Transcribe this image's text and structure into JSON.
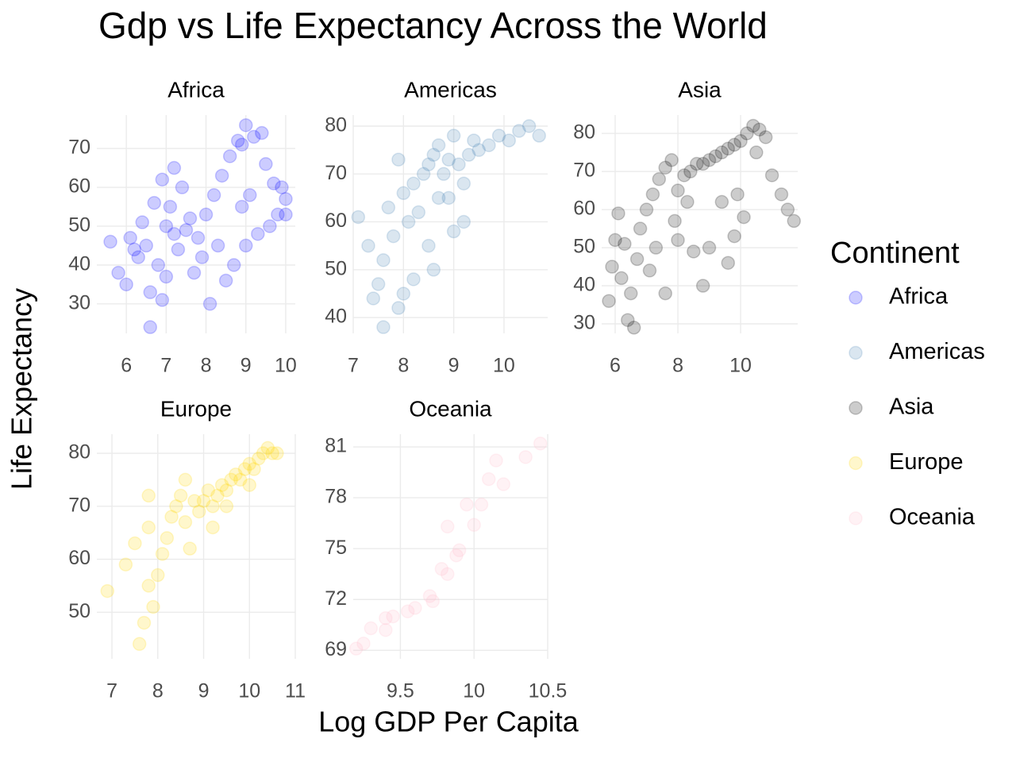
{
  "figure": {
    "title": "Gdp vs Life Expectancy Across the World",
    "x_label": "Log GDP Per Capita",
    "y_label": "Life Expectancy",
    "legend_title": "Continent",
    "legend_position": "right"
  },
  "chart_data": [
    {
      "type": "scatter",
      "title": "Africa",
      "xlim": [
        5.26,
        10.24
      ],
      "ylim": [
        22.4,
        78.6
      ],
      "xticks": [
        6,
        7,
        8,
        9,
        10
      ],
      "yticks": [
        30,
        40,
        50,
        60,
        70
      ],
      "grid": true,
      "series": [
        {
          "name": "Africa",
          "color": "#0000ff",
          "x": [
            6.5,
            6.8,
            7.0,
            7.2,
            6.3,
            5.6,
            5.8,
            6.0,
            6.2,
            6.6,
            6.9,
            7.1,
            7.4,
            7.6,
            7.3,
            7.8,
            8.0,
            8.2,
            8.4,
            8.6,
            8.8,
            9.0,
            8.9,
            9.2,
            9.4,
            9.5,
            9.7,
            9.9,
            10.0,
            9.8,
            9.6,
            9.3,
            9.0,
            8.7,
            8.5,
            8.1,
            7.9,
            7.7,
            7.5,
            6.7,
            6.4,
            6.1,
            6.9,
            7.2,
            7.0,
            6.6,
            8.3,
            8.9,
            9.1,
            10.0
          ],
          "values": [
            45,
            40,
            50,
            48,
            42,
            46,
            38,
            35,
            44,
            24,
            31,
            55,
            60,
            52,
            44,
            47,
            53,
            58,
            63,
            68,
            72,
            76,
            71,
            73,
            74,
            66,
            61,
            60,
            57,
            53,
            50,
            48,
            45,
            40,
            36,
            30,
            42,
            38,
            49,
            56,
            51,
            47,
            62,
            65,
            37,
            33,
            45,
            55,
            58,
            53
          ]
        }
      ]
    },
    {
      "type": "scatter",
      "title": "Americas",
      "xlim": [
        7.0,
        10.87
      ],
      "ylim": [
        36.7,
        82.3
      ],
      "xticks": [
        7,
        8,
        9,
        10
      ],
      "yticks": [
        40,
        50,
        60,
        70,
        80
      ],
      "grid": true,
      "series": [
        {
          "name": "Americas",
          "color": "#4682b4",
          "x": [
            7.1,
            7.3,
            7.5,
            7.6,
            7.8,
            7.7,
            8.0,
            8.1,
            8.2,
            8.4,
            8.5,
            8.6,
            8.7,
            8.8,
            8.9,
            9.0,
            9.1,
            9.2,
            9.3,
            9.4,
            9.5,
            9.7,
            9.9,
            10.1,
            10.3,
            10.5,
            10.7,
            8.3,
            8.0,
            7.9,
            7.6,
            8.5,
            8.6,
            8.2,
            8.9,
            9.2,
            9.0,
            7.4,
            8.7,
            7.9
          ],
          "values": [
            61,
            55,
            47,
            52,
            57,
            63,
            66,
            60,
            68,
            70,
            72,
            74,
            76,
            70,
            73,
            78,
            72,
            68,
            74,
            77,
            75,
            76,
            78,
            77,
            79,
            80,
            78,
            62,
            45,
            42,
            38,
            55,
            50,
            48,
            65,
            60,
            58,
            44,
            65,
            73
          ]
        }
      ]
    },
    {
      "type": "scatter",
      "title": "Asia",
      "xlim": [
        5.57,
        11.82
      ],
      "ylim": [
        27.5,
        84.8
      ],
      "xticks": [
        6,
        8,
        10
      ],
      "yticks": [
        30,
        40,
        50,
        60,
        70,
        80
      ],
      "grid": true,
      "series": [
        {
          "name": "Asia",
          "color": "#000000",
          "x": [
            5.8,
            5.9,
            6.0,
            6.1,
            6.2,
            6.4,
            6.5,
            6.6,
            6.7,
            6.8,
            7.0,
            7.2,
            7.4,
            7.6,
            7.8,
            8.0,
            8.2,
            8.4,
            8.6,
            8.8,
            9.0,
            9.2,
            9.4,
            9.6,
            9.8,
            10.0,
            10.2,
            10.4,
            10.6,
            10.8,
            11.0,
            11.3,
            11.5,
            11.7,
            10.1,
            9.8,
            9.6,
            9.0,
            8.5,
            8.0,
            7.6,
            7.1,
            7.9,
            8.3,
            8.8,
            9.4,
            9.9,
            10.5,
            6.3,
            7.3
          ],
          "values": [
            36,
            45,
            52,
            59,
            42,
            31,
            38,
            29,
            47,
            55,
            60,
            64,
            68,
            71,
            73,
            65,
            69,
            70,
            72,
            72,
            73,
            74,
            75,
            76,
            77,
            78,
            80,
            82,
            81,
            79,
            69,
            64,
            60,
            57,
            58,
            53,
            46,
            50,
            49,
            52,
            38,
            44,
            57,
            62,
            40,
            62,
            64,
            75,
            51,
            50
          ]
        }
      ]
    },
    {
      "type": "scatter",
      "title": "Europe",
      "xlim": [
        6.67,
        11.0
      ],
      "ylim": [
        41.2,
        83.6
      ],
      "xticks": [
        7,
        8,
        9,
        10,
        11
      ],
      "yticks": [
        50,
        60,
        70,
        80
      ],
      "grid": true,
      "series": [
        {
          "name": "Europe",
          "color": "#ffd700",
          "x": [
            6.9,
            7.3,
            7.5,
            7.6,
            7.7,
            7.8,
            7.8,
            7.8,
            8.0,
            8.1,
            8.2,
            8.3,
            8.4,
            8.5,
            8.6,
            8.8,
            8.9,
            9.0,
            9.1,
            9.2,
            9.3,
            9.4,
            9.5,
            9.6,
            9.7,
            9.8,
            9.9,
            10.0,
            10.1,
            10.2,
            10.3,
            10.4,
            10.5,
            10.6,
            9.2,
            8.7,
            9.5,
            10.0,
            7.9,
            8.6
          ],
          "values": [
            54,
            59,
            63,
            44,
            48,
            55,
            66,
            72,
            57,
            61,
            64,
            68,
            70,
            72,
            75,
            71,
            69,
            71,
            73,
            70,
            72,
            74,
            73,
            75,
            76,
            75,
            77,
            78,
            77,
            79,
            80,
            81,
            80,
            80,
            66,
            62,
            70,
            74,
            51,
            67
          ]
        }
      ]
    },
    {
      "type": "scatter",
      "title": "Oceania",
      "xlim": [
        9.18,
        10.5
      ],
      "ylim": [
        68.5,
        81.75
      ],
      "xticks": [
        9.5,
        10,
        10.5
      ],
      "yticks": [
        69,
        72,
        75,
        78,
        81
      ],
      "grid": true,
      "series": [
        {
          "name": "Oceania",
          "color": "#ffc0cb",
          "x": [
            9.2,
            9.25,
            9.3,
            9.4,
            9.4,
            9.45,
            9.55,
            9.6,
            9.7,
            9.72,
            9.78,
            9.82,
            9.88,
            9.9,
            9.95,
            10.0,
            10.05,
            10.1,
            10.15,
            9.82,
            10.2,
            10.35,
            10.45
          ],
          "values": [
            69.1,
            69.4,
            70.3,
            70.9,
            70.2,
            71.0,
            71.3,
            71.5,
            72.2,
            71.9,
            73.8,
            73.5,
            74.6,
            74.9,
            77.6,
            76.4,
            77.6,
            79.1,
            80.2,
            76.3,
            78.8,
            80.4,
            81.2
          ]
        }
      ]
    }
  ]
}
